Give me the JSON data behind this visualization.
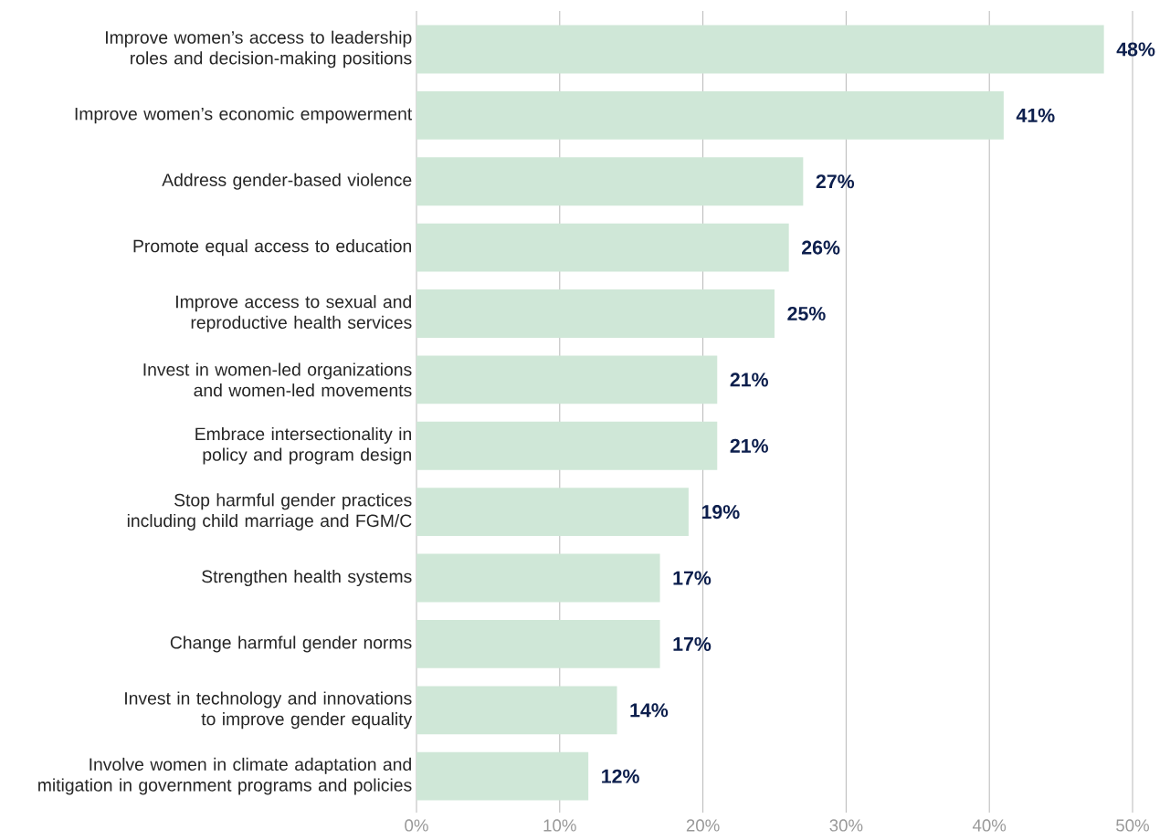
{
  "chart_data": {
    "type": "bar",
    "orientation": "horizontal",
    "categories": [
      "Improve women’s access to leadership roles and decision-making positions",
      "Improve women’s economic empowerment",
      "Address gender-based violence",
      "Promote equal access to education",
      "Improve access to sexual and reproductive health services",
      "Invest in women-led organizations and women-led movements",
      "Embrace intersectionality in policy and program design",
      "Stop harmful gender practices including child marriage and FGM/C",
      "Strengthen health systems",
      "Change harmful gender norms",
      "Invest in technology and innovations to improve gender equality",
      "Involve women in climate adaptation and mitigation in government programs and policies"
    ],
    "values": [
      48,
      41,
      27,
      26,
      25,
      21,
      21,
      19,
      17,
      17,
      14,
      12
    ],
    "value_labels": [
      "48%",
      "41%",
      "27%",
      "26%",
      "25%",
      "21%",
      "21%",
      "19%",
      "17%",
      "17%",
      "14%",
      "12%"
    ],
    "color": "#cfe7d7",
    "xlim": [
      0,
      50
    ],
    "xticks": [
      {
        "value": 0,
        "label": "0%"
      },
      {
        "value": 10,
        "label": "10%"
      },
      {
        "value": 20,
        "label": "20%"
      },
      {
        "value": 30,
        "label": "30%"
      },
      {
        "value": 40,
        "label": "40%"
      },
      {
        "value": 50,
        "label": "50%"
      }
    ],
    "grid": "x"
  }
}
